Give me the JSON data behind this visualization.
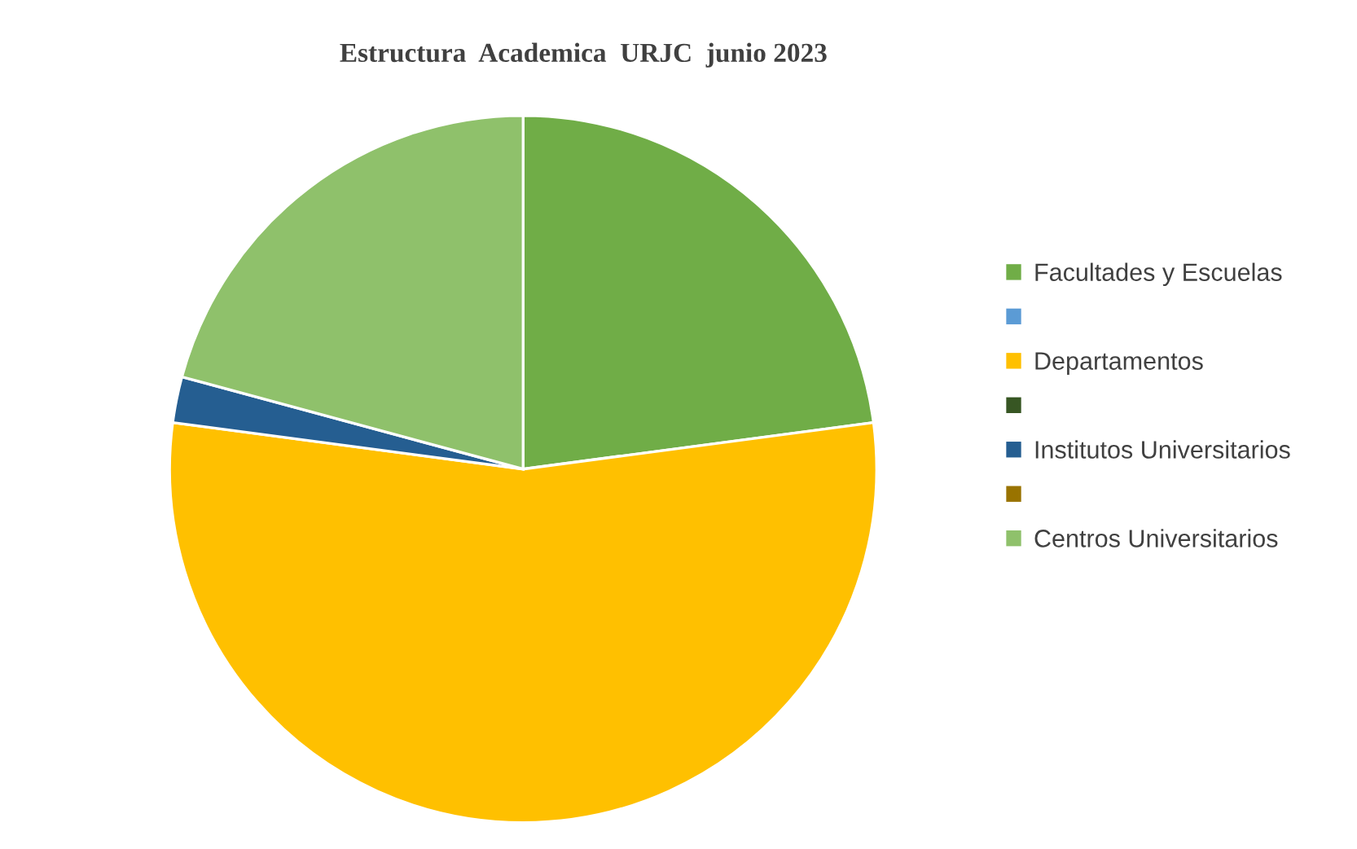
{
  "chart_data": {
    "type": "pie",
    "title": "Estructura  Academica  URJC  junio 2023",
    "categories": [
      "Facultades y Escuelas",
      null,
      "Departamentos",
      null,
      "Institutos Universitarios",
      null,
      "Centros Universitarios"
    ],
    "values": [
      22.9,
      0,
      54.2,
      0,
      2.1,
      0,
      20.8
    ],
    "colors": [
      "#70ad47",
      "#5b9bd5",
      "#ffc000",
      "#375623",
      "#255e91",
      "#997300",
      "#8fc16b"
    ],
    "legend": "right"
  }
}
